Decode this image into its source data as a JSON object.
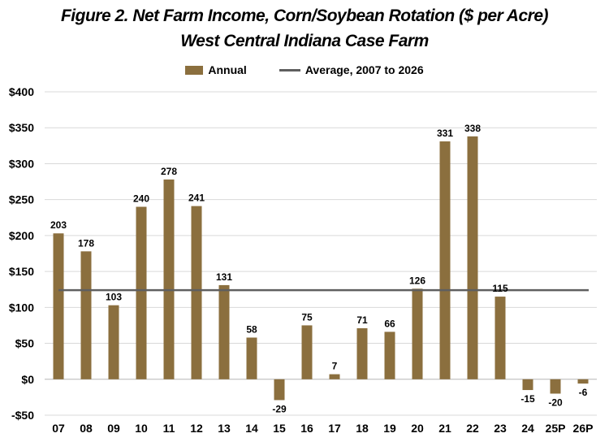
{
  "chart_data": {
    "type": "bar",
    "title": "Figure 2. Net Farm Income, Corn/Soybean Rotation ($ per Acre)",
    "subtitle": "West Central Indiana Case Farm",
    "xlabel": "",
    "ylabel": "",
    "ylim": [
      -50,
      400
    ],
    "y_ticks": [
      -50,
      0,
      50,
      100,
      150,
      200,
      250,
      300,
      350,
      400
    ],
    "y_tick_labels": [
      "-$50",
      "$0",
      "$50",
      "$100",
      "$150",
      "$200",
      "$250",
      "$300",
      "$350",
      "$400"
    ],
    "grid": true,
    "legend_position": "top-center",
    "categories": [
      "07",
      "08",
      "09",
      "10",
      "11",
      "12",
      "13",
      "14",
      "15",
      "16",
      "17",
      "18",
      "19",
      "20",
      "21",
      "22",
      "23",
      "24",
      "25P",
      "26P"
    ],
    "series": [
      {
        "name": "Annual",
        "type": "bar",
        "color": "#8B6F3E",
        "values": [
          203,
          178,
          103,
          240,
          278,
          241,
          131,
          58,
          -29,
          75,
          7,
          71,
          66,
          126,
          331,
          338,
          115,
          -15,
          -20,
          -6
        ],
        "labels": [
          "203",
          "178",
          "103",
          "240",
          "278",
          "241",
          "131",
          "58",
          "-29",
          "75",
          "7",
          "71",
          "66",
          "126",
          "331",
          "338",
          "115",
          "-15",
          "-20",
          "-6"
        ]
      },
      {
        "name": "Average, 2007 to 2026",
        "type": "line",
        "color": "#5F5F5F",
        "value": 124
      }
    ]
  }
}
